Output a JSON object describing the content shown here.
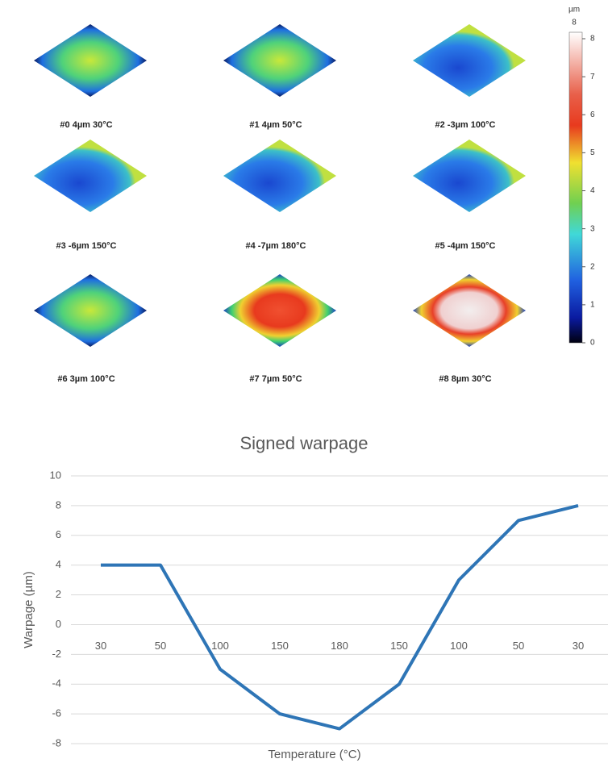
{
  "panels": [
    "#0  4µm 30°C",
    "#1  4µm 50°C",
    "#2  -3µm 100°C",
    "#3  -6µm 150°C",
    "#4  -7µm 180°C",
    "#5  -4µm 150°C",
    "#6  3µm 100°C",
    "#7  7µm 50°C",
    "#8  8µm 30°C"
  ],
  "colorbar": {
    "unit": "µm",
    "max": 8,
    "ticks": [
      0,
      1,
      2,
      3,
      4,
      5,
      6,
      7,
      8
    ]
  },
  "chart_data": {
    "type": "line",
    "title": "Signed warpage",
    "x_label": "Temperature (°C)",
    "y_label": "Warpage (µm)",
    "categories": [
      "30",
      "50",
      "100",
      "150",
      "180",
      "150",
      "100",
      "50",
      "30"
    ],
    "values": [
      4,
      4,
      -3,
      -6,
      -7,
      -4,
      3,
      7,
      8
    ],
    "color": "#2e75b6",
    "ylim": [
      -8,
      10
    ],
    "yticks": [
      -8,
      -6,
      -4,
      -2,
      0,
      2,
      4,
      6,
      8,
      10
    ],
    "grid": true
  }
}
